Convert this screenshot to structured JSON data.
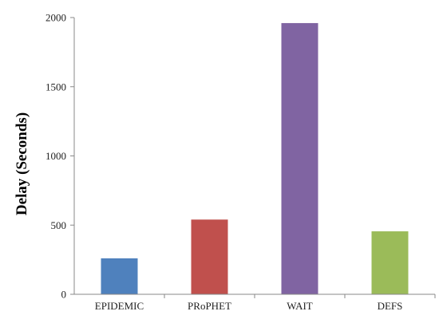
{
  "chart_data": {
    "type": "bar",
    "title": "",
    "xlabel": "",
    "ylabel": "Delay (Seconds)",
    "categories": [
      "EPIDEMIC",
      "PRoPHET",
      "WAIT",
      "DEFS"
    ],
    "values": [
      260,
      540,
      1960,
      455
    ],
    "colors": [
      "#4f81bd",
      "#c0504d",
      "#8064a2",
      "#9bbb59"
    ],
    "ylim": [
      0,
      2000
    ],
    "yticks": [
      0,
      500,
      1000,
      1500,
      2000
    ],
    "grid": false,
    "legend": "none"
  }
}
